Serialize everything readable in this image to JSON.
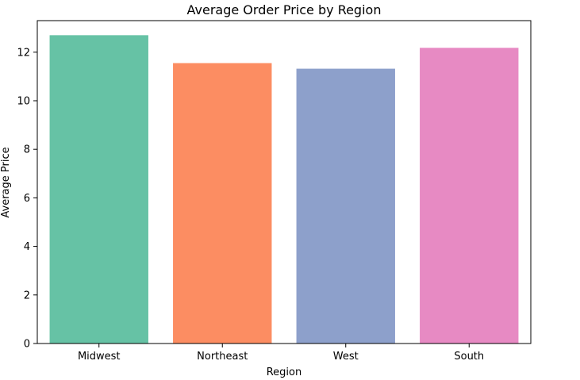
{
  "chart_data": {
    "type": "bar",
    "title": "Average Order Price by Region",
    "xlabel": "Region",
    "ylabel": "Average Price",
    "categories": [
      "Midwest",
      "Northeast",
      "West",
      "South"
    ],
    "values": [
      12.7,
      11.55,
      11.32,
      12.18
    ],
    "colors": [
      "#66c2a5",
      "#fc8d62",
      "#8da0cb",
      "#e78ac3"
    ],
    "ylim": [
      0,
      13.3
    ],
    "yticks": [
      0,
      2,
      4,
      6,
      8,
      10,
      12
    ],
    "grid": false,
    "legend": false
  }
}
